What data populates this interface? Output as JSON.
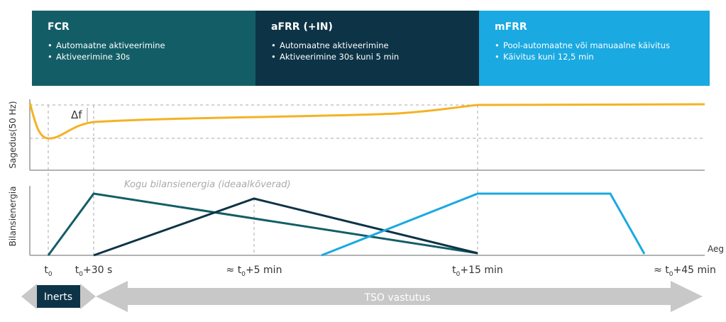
{
  "header": {
    "boxes": [
      {
        "title": "FCR",
        "bullets": [
          "Automaatne aktiveerimine",
          "Aktiveerimine 30s"
        ]
      },
      {
        "title": "aFRR (+IN)",
        "bullets": [
          "Automaatne aktiveerimine",
          "Aktiveerimine 30s kuni 5 min"
        ]
      },
      {
        "title": "mFRR",
        "bullets": [
          "Pool-automaatne või  manuaalne käivitus",
          "Käivitus kuni 12,5 min"
        ]
      }
    ]
  },
  "frequency_panel": {
    "axis_label": "Sagedus(50 Hz)",
    "delta_label": "Δf"
  },
  "energy_panel": {
    "axis_label": "Bilansienergia",
    "note": "Kogu bilansienergia (ideaalkõverad)",
    "x_axis_label": "Aeg"
  },
  "time_labels": [
    {
      "pre": "t",
      "sub": "0"
    },
    {
      "pre": "t",
      "sub": "0",
      "post": "+30 s"
    },
    {
      "pre": "≈ t",
      "sub": "0",
      "post": "+5 min"
    },
    {
      "pre": "t",
      "sub": "0",
      "post": "+15 min"
    },
    {
      "pre": "≈ t",
      "sub": "0",
      "post": "+45 min"
    }
  ],
  "responsibility": {
    "inertia": "Inerts",
    "tso": "TSO vastutus"
  }
}
